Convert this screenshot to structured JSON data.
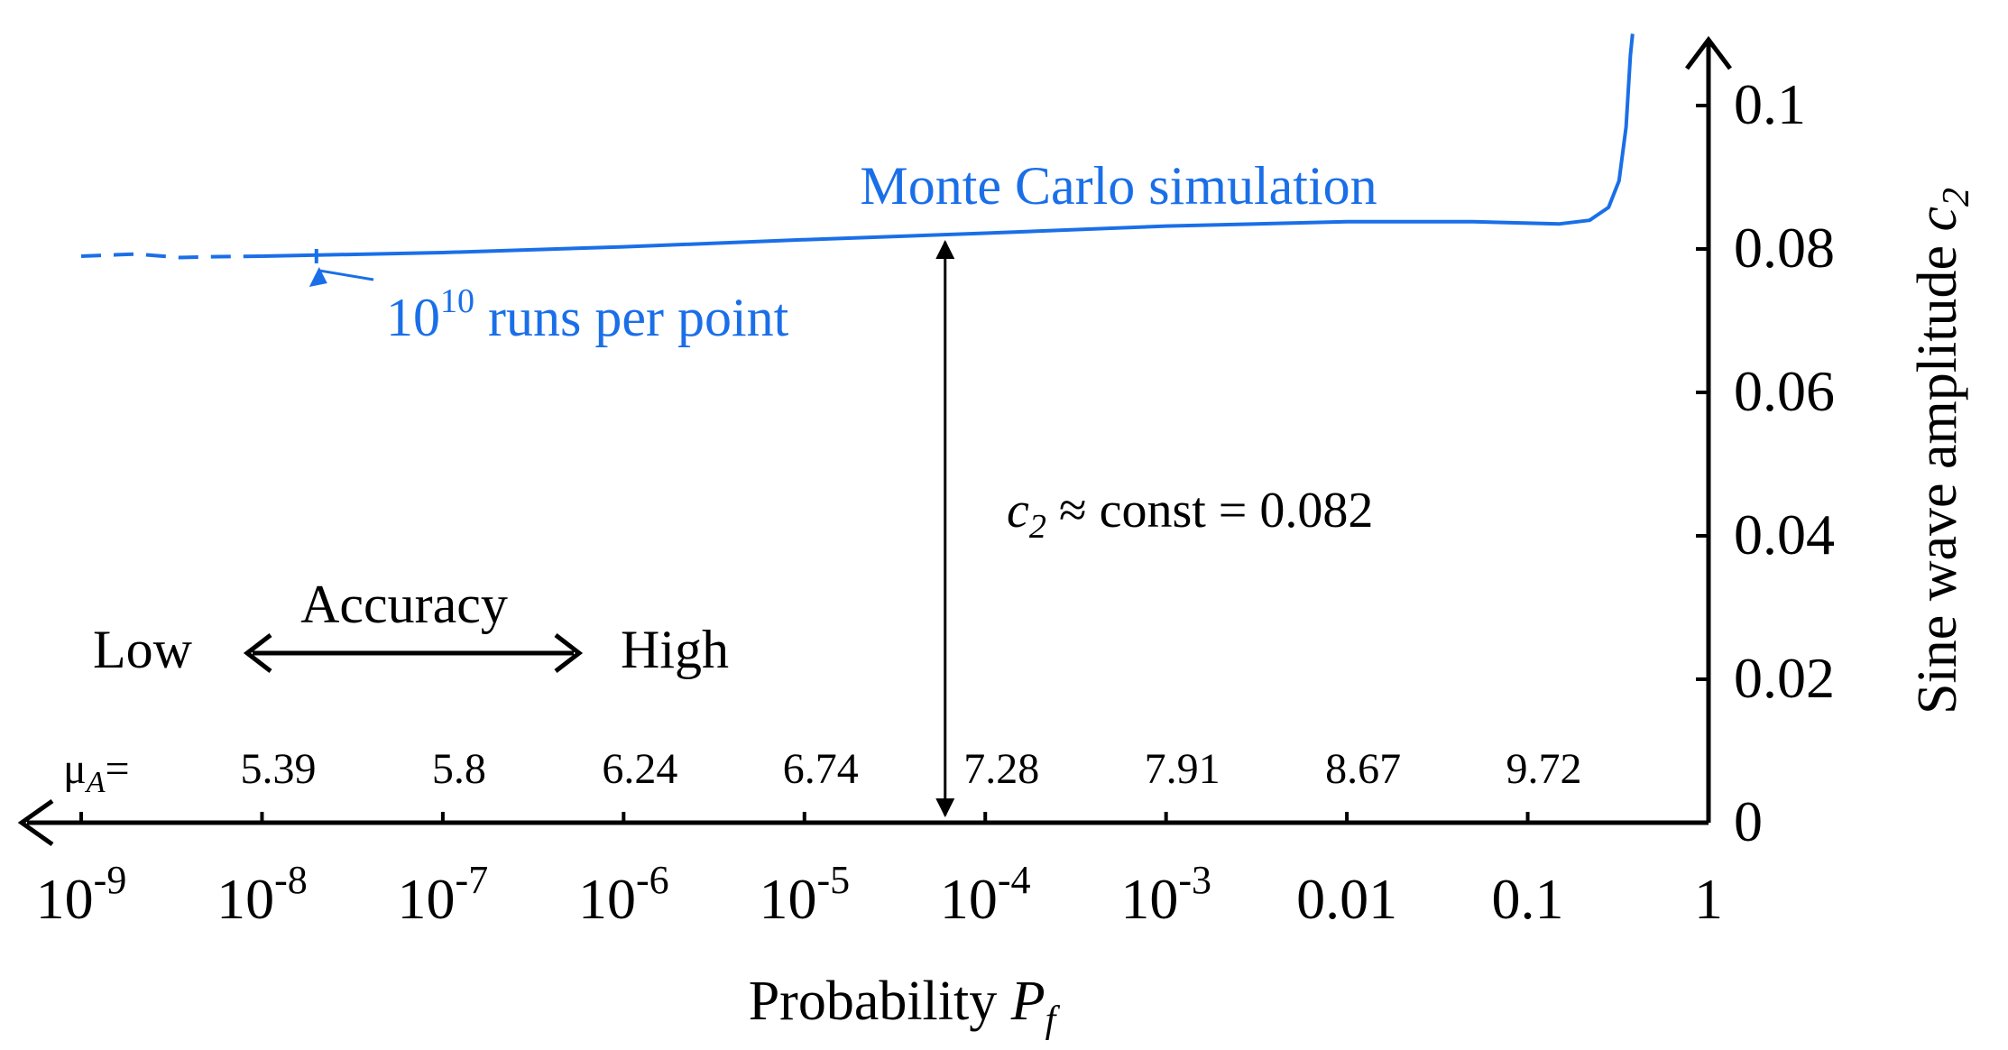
{
  "chart_data": {
    "type": "line",
    "title": "",
    "xlabel": "Probability P_f",
    "xlabel_parts": {
      "text": "Probability ",
      "symbol": "P",
      "subscript": "f"
    },
    "ylabel": "Sine wave amplitude c_2",
    "ylabel_parts": {
      "text": "Sine wave amplitude ",
      "symbol": "c",
      "subscript": "2"
    },
    "x_scale": "log",
    "x_direction": "decreasing-to-the-right-is-1",
    "x_ticks": [
      {
        "value": 1e-09,
        "base": "10",
        "exp": "-9"
      },
      {
        "value": 1e-08,
        "base": "10",
        "exp": "-8"
      },
      {
        "value": 1e-07,
        "base": "10",
        "exp": "-7"
      },
      {
        "value": 1e-06,
        "base": "10",
        "exp": "-6"
      },
      {
        "value": 1e-05,
        "base": "10",
        "exp": "-5"
      },
      {
        "value": 0.0001,
        "base": "10",
        "exp": "-4"
      },
      {
        "value": 0.001,
        "base": "10",
        "exp": "-3"
      },
      {
        "value": 0.01,
        "label": "0.01"
      },
      {
        "value": 0.1,
        "label": "0.1"
      },
      {
        "value": 1,
        "label": "1"
      }
    ],
    "y_ticks": [
      {
        "value": 0,
        "label": "0"
      },
      {
        "value": 0.02,
        "label": "0.02"
      },
      {
        "value": 0.04,
        "label": "0.04"
      },
      {
        "value": 0.06,
        "label": "0.06"
      },
      {
        "value": 0.08,
        "label": "0.08"
      },
      {
        "value": 0.1,
        "label": "0.1"
      }
    ],
    "ylim": [
      0,
      0.11
    ],
    "grid": false,
    "mu_label": "μ",
    "mu_subscript": "A",
    "mu_equals": "=",
    "mu_values": [
      {
        "x": 1e-08,
        "label": "5.39"
      },
      {
        "x": 1e-07,
        "label": "5.8"
      },
      {
        "x": 1e-06,
        "label": "6.24"
      },
      {
        "x": 1e-05,
        "label": "6.74"
      },
      {
        "x": 0.0001,
        "label": "7.28"
      },
      {
        "x": 0.001,
        "label": "7.91"
      },
      {
        "x": 0.01,
        "label": "8.67"
      },
      {
        "x": 0.1,
        "label": "9.72"
      }
    ],
    "series": [
      {
        "name": "Monte Carlo simulation",
        "color": "#1a6fe8",
        "dashed_points": [
          [
            1e-09,
            0.079
          ],
          [
            2e-09,
            0.0793
          ],
          [
            3.5e-09,
            0.0788
          ],
          [
            5e-09,
            0.0789
          ],
          [
            1e-08,
            0.079
          ]
        ],
        "points": [
          [
            1e-08,
            0.079
          ],
          [
            1e-07,
            0.0795
          ],
          [
            1e-06,
            0.0803
          ],
          [
            1e-05,
            0.0813
          ],
          [
            0.0001,
            0.0822
          ],
          [
            0.001,
            0.0832
          ],
          [
            0.01,
            0.0838
          ],
          [
            0.05,
            0.0838
          ],
          [
            0.15,
            0.0835
          ],
          [
            0.22,
            0.084
          ],
          [
            0.28,
            0.0858
          ],
          [
            0.32,
            0.0895
          ],
          [
            0.35,
            0.097
          ],
          [
            0.37,
            0.107
          ],
          [
            0.38,
            0.11
          ]
        ]
      }
    ],
    "annotations": {
      "runs_base": "10",
      "runs_exp": "10",
      "runs_text": " runs per point",
      "runs_marker_x": 2e-08,
      "const_symbol": "c",
      "const_subscript": "2",
      "const_text": " ≈ const = 0.082",
      "const_arrow_x": 6e-05,
      "const_value": 0.082,
      "accuracy_label": "Accuracy",
      "accuracy_low": "Low",
      "accuracy_high": "High"
    }
  }
}
